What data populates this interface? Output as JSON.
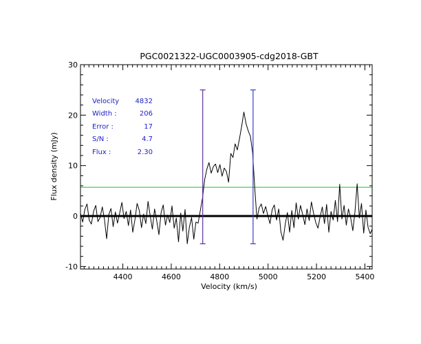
{
  "chart_data": {
    "type": "line",
    "title": "PGC0021322-UGC0003905-cdg2018-GBT",
    "xlabel": "Velocity (km/s)",
    "ylabel": "Flux density (mJy)",
    "xlim": [
      4225,
      5430
    ],
    "ylim": [
      -10.5,
      30
    ],
    "x_ticks": [
      4400,
      4600,
      4800,
      5000,
      5200,
      5400
    ],
    "y_ticks": [
      -10,
      0,
      10,
      20,
      30
    ],
    "x_minor_step": 20,
    "y_minor_step": 2,
    "zero_line": 0,
    "threshold_line": {
      "value": 5.7,
      "color": "#2ecc40"
    },
    "markers": [
      {
        "velocity": 4730,
        "ymin": -5.5,
        "ymax": 25,
        "color": "#5a2ca0"
      },
      {
        "velocity": 4938,
        "ymin": -5.5,
        "ymax": 25,
        "color": "#3b3bc8"
      }
    ],
    "series": [
      {
        "name": "spectrum",
        "color": "#000000",
        "x": [
          4225,
          4234,
          4243,
          4252,
          4261,
          4270,
          4279,
          4288,
          4297,
          4306,
          4315,
          4324,
          4333,
          4342,
          4351,
          4360,
          4369,
          4378,
          4387,
          4396,
          4405,
          4414,
          4423,
          4432,
          4441,
          4450,
          4459,
          4468,
          4477,
          4486,
          4495,
          4504,
          4513,
          4522,
          4531,
          4540,
          4549,
          4558,
          4567,
          4576,
          4585,
          4594,
          4603,
          4612,
          4621,
          4630,
          4639,
          4648,
          4657,
          4666,
          4675,
          4684,
          4693,
          4702,
          4711,
          4720,
          4729,
          4738,
          4747,
          4756,
          4765,
          4774,
          4783,
          4792,
          4801,
          4810,
          4819,
          4828,
          4837,
          4846,
          4855,
          4864,
          4873,
          4882,
          4891,
          4900,
          4909,
          4918,
          4927,
          4936,
          4945,
          4954,
          4963,
          4972,
          4981,
          4990,
          4999,
          5008,
          5017,
          5026,
          5035,
          5044,
          5053,
          5062,
          5071,
          5080,
          5089,
          5098,
          5107,
          5116,
          5125,
          5134,
          5143,
          5152,
          5161,
          5170,
          5179,
          5188,
          5197,
          5206,
          5215,
          5224,
          5233,
          5242,
          5251,
          5260,
          5269,
          5278,
          5287,
          5296,
          5305,
          5314,
          5323,
          5332,
          5341,
          5350,
          5359,
          5368,
          5377,
          5386,
          5395,
          5404,
          5413,
          5422,
          5430
        ],
        "y": [
          0.5,
          -1.2,
          1.3,
          2.4,
          -0.8,
          -1.6,
          0.9,
          2.1,
          -1.1,
          -0.3,
          1.8,
          -0.6,
          -4.5,
          0.3,
          1.5,
          -2.1,
          0.8,
          -1.4,
          0.6,
          2.7,
          -0.5,
          0.9,
          -1.9,
          1.2,
          -3.2,
          -0.7,
          2.5,
          1.1,
          -2.3,
          0.4,
          -1.5,
          2.9,
          0.1,
          -2.6,
          1.4,
          -0.9,
          -3.7,
          0.7,
          2.2,
          -1.8,
          0.2,
          -1.3,
          2.0,
          -2.4,
          -0.4,
          -5.1,
          0.6,
          -3.0,
          1.3,
          -5.5,
          -2.2,
          -0.3,
          -4.6,
          -1.2,
          -1.4,
          1.1,
          3.5,
          7.2,
          9.3,
          10.6,
          8.5,
          9.8,
          10.3,
          8.6,
          10.2,
          7.9,
          9.5,
          8.8,
          6.7,
          12.4,
          11.6,
          14.3,
          13.1,
          15.4,
          17.8,
          20.6,
          18.3,
          16.9,
          15.8,
          12.6,
          5.6,
          -0.6,
          1.6,
          2.4,
          0.5,
          1.9,
          0.1,
          -1.5,
          1.3,
          2.2,
          -0.8,
          1.4,
          -3.1,
          -4.8,
          -1.6,
          0.7,
          -3.2,
          1.1,
          -2.3,
          2.6,
          -0.6,
          2.1,
          0.3,
          -1.7,
          1.4,
          -0.9,
          2.8,
          0.6,
          -1.3,
          -2.4,
          -0.2,
          1.8,
          -1.5,
          2.3,
          -3.2,
          0.9,
          -0.8,
          3.1,
          -1.1,
          6.3,
          -0.6,
          2.1,
          -1.8,
          1.4,
          -0.3,
          -2.9,
          0.8,
          6.4,
          -0.4,
          2.5,
          -3.4,
          1.2,
          -2.2,
          -3.5,
          -2.6
        ]
      }
    ],
    "annotations": [
      {
        "label": "Velocity",
        "value": "4832"
      },
      {
        "label": "Width :",
        "value": "206"
      },
      {
        "label": "Error :",
        "value": "17"
      },
      {
        "label": "S/N :",
        "value": "4.7"
      },
      {
        "label": "Flux :",
        "value": "2.30"
      }
    ],
    "annotation_color": "#2020c8"
  }
}
